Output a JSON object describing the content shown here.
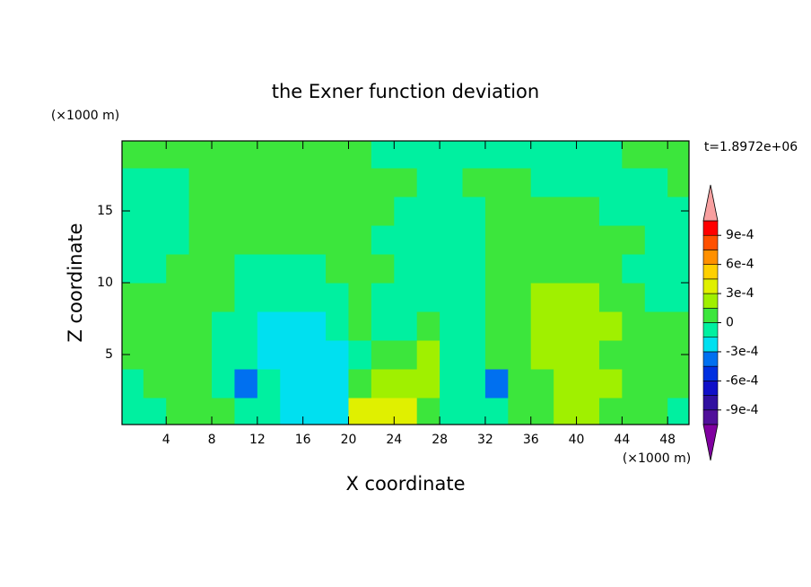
{
  "chart_data": {
    "type": "contourf",
    "title": "the Exner function deviation",
    "xlabel": "X coordinate",
    "ylabel": "Z coordinate",
    "xunit": "(×1000 m)",
    "yunit": "(×1000 m)",
    "annotation": "t=1.8972e+06",
    "xlim": [
      0.125,
      49.875
    ],
    "ylim": [
      0.125,
      19.875
    ],
    "xticks": [
      4,
      8,
      12,
      16,
      20,
      24,
      28,
      32,
      36,
      40,
      44,
      48
    ],
    "yticks": [
      5,
      10,
      15
    ],
    "x": [
      1,
      3,
      5,
      7,
      9,
      11,
      13,
      15,
      17,
      19,
      21,
      23,
      25,
      27,
      29,
      31,
      33,
      35,
      37,
      39,
      41,
      43,
      45,
      47,
      49
    ],
    "y": [
      1,
      3,
      5,
      7,
      9,
      11,
      13,
      15,
      17,
      19
    ],
    "z": [
      [
        -7e-05,
        -7e-05,
        7e-05,
        7e-05,
        7e-05,
        -7e-05,
        -7e-05,
        -0.00022,
        -0.00022,
        -0.00022,
        0.00037,
        0.00037,
        0.00037,
        7e-05,
        -7e-05,
        -7e-05,
        -7e-05,
        7e-05,
        7e-05,
        0.00022,
        0.00022,
        7e-05,
        7e-05,
        7e-05,
        -7e-05
      ],
      [
        -7e-05,
        7e-05,
        7e-05,
        7e-05,
        -7e-05,
        -0.00037,
        -7e-05,
        -0.00022,
        -0.00022,
        -0.00022,
        7e-05,
        0.00022,
        0.00022,
        0.00022,
        -7e-05,
        -7e-05,
        -0.00037,
        7e-05,
        7e-05,
        0.00022,
        0.00022,
        0.00022,
        7e-05,
        7e-05,
        7e-05
      ],
      [
        7e-05,
        7e-05,
        7e-05,
        7e-05,
        -7e-05,
        -7e-05,
        -0.00022,
        -0.00022,
        -0.00022,
        -0.00022,
        -7e-05,
        7e-05,
        7e-05,
        0.00022,
        -7e-05,
        -7e-05,
        7e-05,
        7e-05,
        0.00022,
        0.00022,
        0.00022,
        7e-05,
        7e-05,
        7e-05,
        7e-05
      ],
      [
        7e-05,
        7e-05,
        7e-05,
        7e-05,
        -7e-05,
        -7e-05,
        -0.00022,
        -0.00022,
        -0.00022,
        -7e-05,
        7e-05,
        -7e-05,
        -7e-05,
        7e-05,
        -7e-05,
        -7e-05,
        7e-05,
        7e-05,
        0.00022,
        0.00022,
        0.00022,
        0.00022,
        7e-05,
        7e-05,
        7e-05
      ],
      [
        7e-05,
        7e-05,
        7e-05,
        7e-05,
        7e-05,
        -7e-05,
        -7e-05,
        -7e-05,
        -7e-05,
        -7e-05,
        7e-05,
        -7e-05,
        -7e-05,
        -7e-05,
        -7e-05,
        -7e-05,
        7e-05,
        7e-05,
        0.00022,
        0.00022,
        0.00022,
        7e-05,
        7e-05,
        -7e-05,
        -7e-05
      ],
      [
        -7e-05,
        -7e-05,
        7e-05,
        7e-05,
        7e-05,
        -7e-05,
        -7e-05,
        -7e-05,
        -7e-05,
        7e-05,
        7e-05,
        7e-05,
        -7e-05,
        -7e-05,
        -7e-05,
        -7e-05,
        7e-05,
        7e-05,
        7e-05,
        7e-05,
        7e-05,
        7e-05,
        -7e-05,
        -7e-05,
        -7e-05
      ],
      [
        -7e-05,
        -7e-05,
        -7e-05,
        7e-05,
        7e-05,
        7e-05,
        7e-05,
        7e-05,
        7e-05,
        7e-05,
        7e-05,
        -7e-05,
        -7e-05,
        -7e-05,
        -7e-05,
        -7e-05,
        7e-05,
        7e-05,
        7e-05,
        7e-05,
        7e-05,
        7e-05,
        7e-05,
        -7e-05,
        -7e-05
      ],
      [
        -7e-05,
        -7e-05,
        -7e-05,
        7e-05,
        7e-05,
        7e-05,
        7e-05,
        7e-05,
        7e-05,
        7e-05,
        7e-05,
        7e-05,
        -7e-05,
        -7e-05,
        -7e-05,
        -7e-05,
        7e-05,
        7e-05,
        7e-05,
        7e-05,
        7e-05,
        -7e-05,
        -7e-05,
        -7e-05,
        -7e-05
      ],
      [
        -7e-05,
        -7e-05,
        -7e-05,
        7e-05,
        7e-05,
        7e-05,
        7e-05,
        7e-05,
        7e-05,
        7e-05,
        7e-05,
        7e-05,
        7e-05,
        -7e-05,
        -7e-05,
        7e-05,
        7e-05,
        7e-05,
        -7e-05,
        -7e-05,
        -7e-05,
        -7e-05,
        -7e-05,
        -7e-05,
        7e-05
      ],
      [
        7e-05,
        7e-05,
        7e-05,
        7e-05,
        7e-05,
        7e-05,
        7e-05,
        7e-05,
        7e-05,
        7e-05,
        7e-05,
        -7e-05,
        -7e-05,
        -7e-05,
        -7e-05,
        -7e-05,
        -7e-05,
        -7e-05,
        -7e-05,
        -7e-05,
        -7e-05,
        -7e-05,
        7e-05,
        7e-05,
        7e-05
      ]
    ],
    "colorbar": {
      "levels": [
        -0.00105,
        -0.0009,
        -0.00075,
        -0.0006,
        -0.00045,
        -0.0003,
        -0.00015,
        0,
        0.00015,
        0.0003,
        0.00045,
        0.0006,
        0.00075,
        0.0009,
        0.00105
      ],
      "colors": [
        "#50109a",
        "#3010a0",
        "#1010c8",
        "#0030e0",
        "#0070f0",
        "#00e0f0",
        "#00f0a0",
        "#3ce63c",
        "#a0f000",
        "#e0f000",
        "#ffd000",
        "#ff9000",
        "#ff5000",
        "#ff0000"
      ],
      "under_color": "#8000a0",
      "over_color": "#f8a0a0",
      "ticks": [
        {
          "value": -0.0009,
          "label": "-9e-4"
        },
        {
          "value": -0.0006,
          "label": "-6e-4"
        },
        {
          "value": -0.0003,
          "label": "-3e-4"
        },
        0,
        {
          "value": 0.0003,
          "label": "3e-4"
        },
        {
          "value": 0.0006,
          "label": "6e-4"
        },
        {
          "value": 0.0009,
          "label": "9e-4"
        }
      ]
    }
  }
}
